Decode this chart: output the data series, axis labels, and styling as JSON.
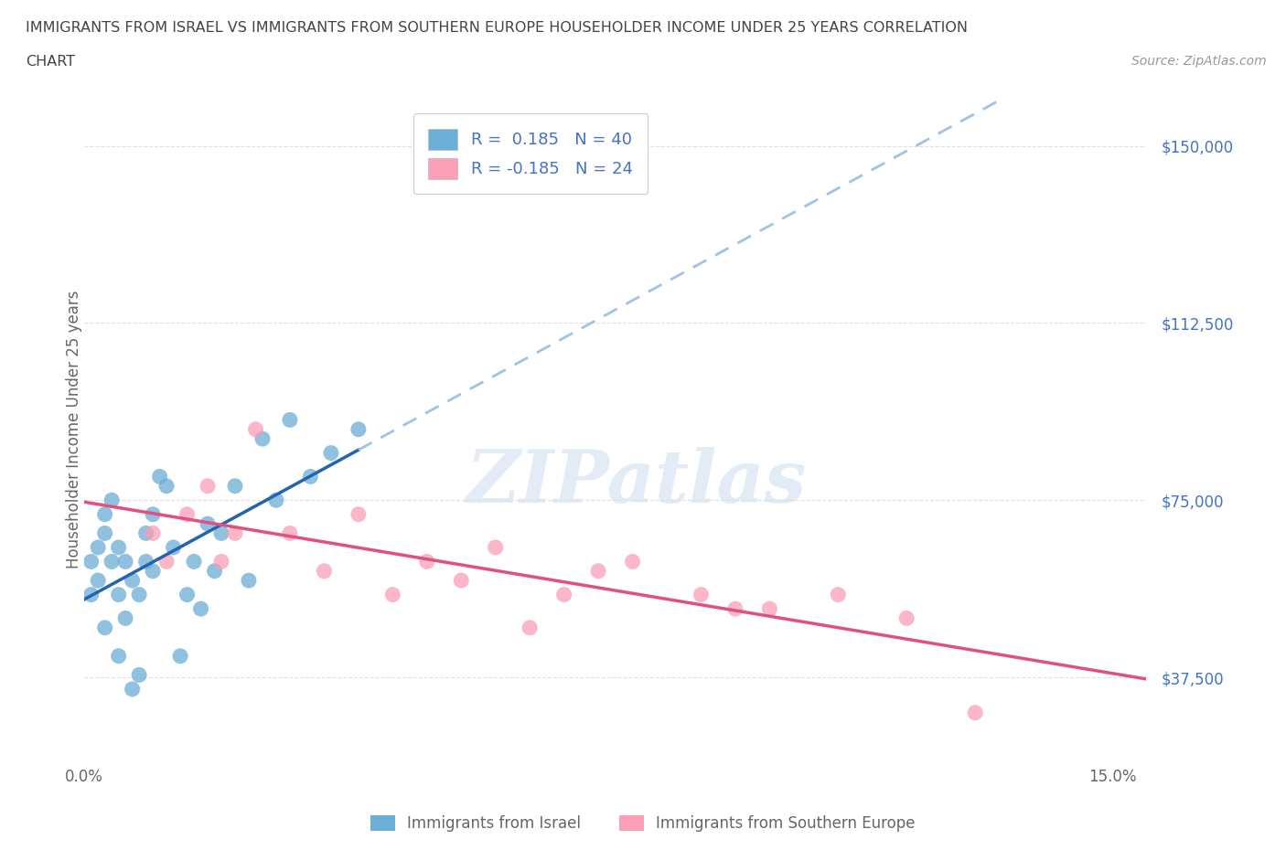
{
  "title_line1": "IMMIGRANTS FROM ISRAEL VS IMMIGRANTS FROM SOUTHERN EUROPE HOUSEHOLDER INCOME UNDER 25 YEARS CORRELATION",
  "title_line2": "CHART",
  "source": "Source: ZipAtlas.com",
  "ylabel": "Householder Income Under 25 years",
  "y_ticks": [
    37500,
    75000,
    112500,
    150000
  ],
  "y_tick_labels": [
    "$37,500",
    "$75,000",
    "$112,500",
    "$150,000"
  ],
  "israel_color": "#6baed6",
  "israel_line_color": "#2166ac",
  "southern_europe_color": "#fa9fb5",
  "southern_line_color": "#e05080",
  "israel_R": 0.185,
  "israel_N": 40,
  "southern_europe_R": -0.185,
  "southern_europe_N": 24,
  "legend_label_israel": "Immigrants from Israel",
  "legend_label_southern": "Immigrants from Southern Europe",
  "israel_x": [
    0.001,
    0.001,
    0.002,
    0.002,
    0.003,
    0.003,
    0.003,
    0.004,
    0.004,
    0.005,
    0.005,
    0.005,
    0.006,
    0.006,
    0.007,
    0.007,
    0.008,
    0.008,
    0.009,
    0.009,
    0.01,
    0.01,
    0.011,
    0.012,
    0.013,
    0.014,
    0.015,
    0.016,
    0.017,
    0.018,
    0.019,
    0.02,
    0.022,
    0.024,
    0.026,
    0.028,
    0.03,
    0.033,
    0.036,
    0.04
  ],
  "israel_y": [
    62000,
    55000,
    65000,
    58000,
    48000,
    72000,
    68000,
    62000,
    75000,
    55000,
    42000,
    65000,
    50000,
    62000,
    35000,
    58000,
    38000,
    55000,
    62000,
    68000,
    60000,
    72000,
    80000,
    78000,
    65000,
    42000,
    55000,
    62000,
    52000,
    70000,
    60000,
    68000,
    78000,
    58000,
    88000,
    75000,
    92000,
    80000,
    85000,
    90000
  ],
  "southern_x": [
    0.01,
    0.012,
    0.015,
    0.018,
    0.02,
    0.022,
    0.025,
    0.03,
    0.035,
    0.04,
    0.045,
    0.05,
    0.055,
    0.06,
    0.065,
    0.07,
    0.075,
    0.08,
    0.09,
    0.095,
    0.1,
    0.11,
    0.12,
    0.13
  ],
  "southern_y": [
    68000,
    62000,
    72000,
    78000,
    62000,
    68000,
    90000,
    68000,
    60000,
    72000,
    55000,
    62000,
    58000,
    65000,
    48000,
    55000,
    60000,
    62000,
    55000,
    52000,
    52000,
    55000,
    50000,
    30000
  ],
  "xlim": [
    0.0,
    0.155
  ],
  "ylim": [
    20000,
    160000
  ],
  "background_color": "#ffffff",
  "watermark_text": "ZIPatlas",
  "title_color": "#444444",
  "axis_label_color": "#4472c4",
  "tick_color": "#666666",
  "grid_color": "#e0e0e0",
  "dashed_line_color": "#9dc3e6"
}
